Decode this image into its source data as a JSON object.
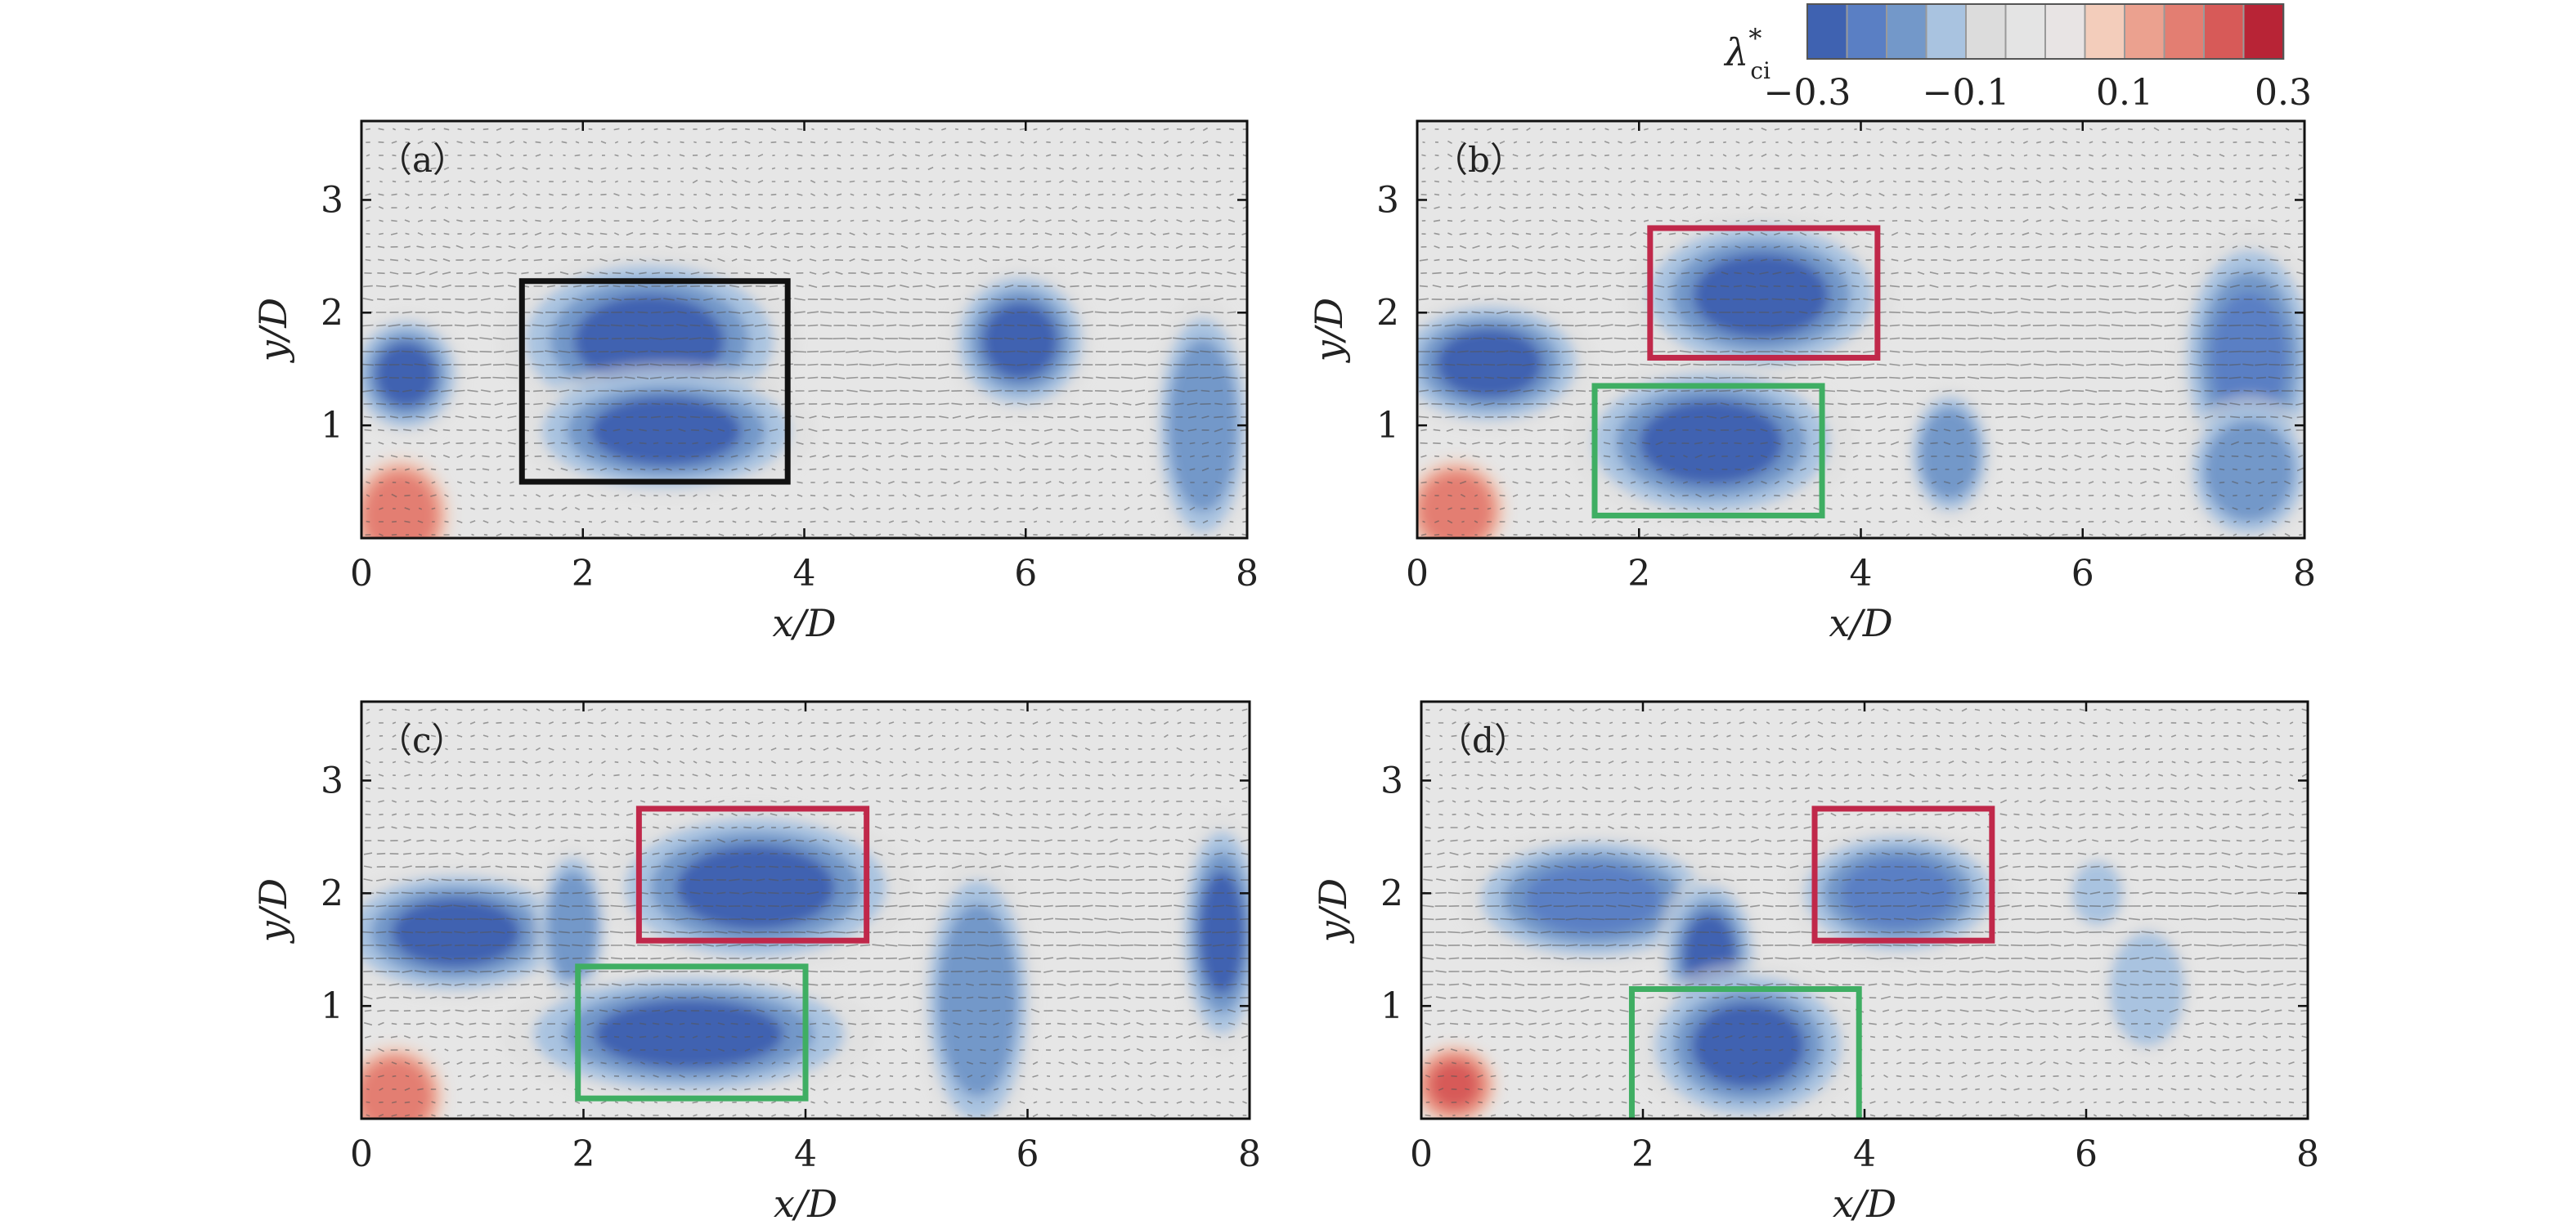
{
  "chart_data": [
    {
      "type": "heatmap",
      "panel_label": "（a）",
      "xlabel": "x/D",
      "ylabel": "y/D",
      "xlim": [
        0,
        8
      ],
      "ylim": [
        0,
        3.7
      ],
      "xticks": [
        "0",
        "2",
        "4",
        "6",
        "8"
      ],
      "yticks": [
        "1",
        "2",
        "3"
      ],
      "vortices": [
        {
          "x": 0.4,
          "y": 1.45,
          "rx": 0.4,
          "ry": 0.42,
          "value": -0.3
        },
        {
          "x": 2.6,
          "y": 1.75,
          "rx": 1.0,
          "ry": 0.6,
          "value": -0.3
        },
        {
          "x": 2.75,
          "y": 0.95,
          "rx": 1.0,
          "ry": 0.45,
          "value": -0.28
        },
        {
          "x": 5.95,
          "y": 1.75,
          "rx": 0.5,
          "ry": 0.5,
          "value": -0.25
        },
        {
          "x": 7.6,
          "y": 1.0,
          "rx": 0.35,
          "ry": 0.85,
          "value": -0.18
        },
        {
          "x": 0.35,
          "y": 0.2,
          "rx": 0.35,
          "ry": 0.4,
          "value": 0.2
        }
      ],
      "boxes": [
        {
          "color": "#111111",
          "x0": 1.45,
          "x1": 3.85,
          "y0": 0.5,
          "y1": 2.28
        }
      ]
    },
    {
      "type": "heatmap",
      "panel_label": "（b）",
      "xlabel": "x/D",
      "ylabel": "y/D",
      "xlim": [
        0,
        8
      ],
      "ylim": [
        0,
        3.7
      ],
      "xticks": [
        "0",
        "2",
        "4",
        "6",
        "8"
      ],
      "yticks": [
        "1",
        "2",
        "3"
      ],
      "vortices": [
        {
          "x": 3.1,
          "y": 2.15,
          "rx": 0.9,
          "ry": 0.55,
          "value": -0.28
        },
        {
          "x": 0.65,
          "y": 1.55,
          "rx": 0.7,
          "ry": 0.45,
          "value": -0.28
        },
        {
          "x": 2.65,
          "y": 0.85,
          "rx": 0.95,
          "ry": 0.55,
          "value": -0.28
        },
        {
          "x": 4.8,
          "y": 0.75,
          "rx": 0.3,
          "ry": 0.45,
          "value": -0.15
        },
        {
          "x": 7.5,
          "y": 1.6,
          "rx": 0.5,
          "ry": 0.85,
          "value": -0.22
        },
        {
          "x": 7.5,
          "y": 0.6,
          "rx": 0.45,
          "ry": 0.5,
          "value": -0.15
        },
        {
          "x": 0.35,
          "y": 0.25,
          "rx": 0.35,
          "ry": 0.35,
          "value": 0.2
        }
      ],
      "boxes": [
        {
          "color": "#c0284a",
          "x0": 2.1,
          "x1": 4.15,
          "y0": 1.6,
          "y1": 2.75
        },
        {
          "color": "#3fae63",
          "x0": 1.6,
          "x1": 3.65,
          "y0": 0.2,
          "y1": 1.35
        }
      ]
    },
    {
      "type": "heatmap",
      "panel_label": "（c）",
      "xlabel": "x/D",
      "ylabel": "y/D",
      "xlim": [
        0,
        8
      ],
      "ylim": [
        0,
        3.7
      ],
      "xticks": [
        "0",
        "2",
        "4",
        "6",
        "8"
      ],
      "yticks": [
        "1",
        "2",
        "3"
      ],
      "vortices": [
        {
          "x": 0.85,
          "y": 1.65,
          "rx": 0.85,
          "ry": 0.45,
          "value": -0.28
        },
        {
          "x": 1.9,
          "y": 1.7,
          "rx": 0.25,
          "ry": 0.55,
          "value": -0.15
        },
        {
          "x": 3.55,
          "y": 2.05,
          "rx": 1.05,
          "ry": 0.55,
          "value": -0.26
        },
        {
          "x": 2.95,
          "y": 0.75,
          "rx": 1.25,
          "ry": 0.45,
          "value": -0.28
        },
        {
          "x": 5.55,
          "y": 1.05,
          "rx": 0.4,
          "ry": 0.95,
          "value": -0.18
        },
        {
          "x": 7.75,
          "y": 1.65,
          "rx": 0.3,
          "ry": 0.8,
          "value": -0.25
        },
        {
          "x": 0.3,
          "y": 0.2,
          "rx": 0.35,
          "ry": 0.35,
          "value": 0.2
        }
      ],
      "boxes": [
        {
          "color": "#c0284a",
          "x0": 2.5,
          "x1": 4.55,
          "y0": 1.58,
          "y1": 2.75
        },
        {
          "color": "#3fae63",
          "x0": 1.95,
          "x1": 4.0,
          "y0": 0.18,
          "y1": 1.35
        }
      ]
    },
    {
      "type": "heatmap",
      "panel_label": "（d）",
      "xlabel": "x/D",
      "ylabel": "y/D",
      "xlim": [
        0,
        8
      ],
      "ylim": [
        0,
        3.7
      ],
      "xticks": [
        "0",
        "2",
        "4",
        "6",
        "8"
      ],
      "yticks": [
        "1",
        "2",
        "3"
      ],
      "vortices": [
        {
          "x": 1.55,
          "y": 1.95,
          "rx": 0.9,
          "ry": 0.45,
          "value": -0.2
        },
        {
          "x": 2.6,
          "y": 1.45,
          "rx": 0.35,
          "ry": 0.55,
          "value": -0.27
        },
        {
          "x": 2.95,
          "y": 0.65,
          "rx": 0.75,
          "ry": 0.55,
          "value": -0.28
        },
        {
          "x": 4.3,
          "y": 2.0,
          "rx": 0.75,
          "ry": 0.45,
          "value": -0.24
        },
        {
          "x": 6.1,
          "y": 2.0,
          "rx": 0.2,
          "ry": 0.25,
          "value": -0.12
        },
        {
          "x": 6.55,
          "y": 1.15,
          "rx": 0.3,
          "ry": 0.45,
          "value": -0.12
        },
        {
          "x": 0.3,
          "y": 0.3,
          "rx": 0.3,
          "ry": 0.28,
          "value": 0.25
        }
      ],
      "boxes": [
        {
          "color": "#c0284a",
          "x0": 3.55,
          "x1": 5.15,
          "y0": 1.58,
          "y1": 2.75
        },
        {
          "color": "#3fae63",
          "x0": 1.9,
          "x1": 3.95,
          "y0": -0.05,
          "y1": 1.15
        }
      ]
    }
  ],
  "colorbar": {
    "label": "λ",
    "label_sup": "*",
    "label_sub": "ci",
    "vmin": -0.3,
    "vmax": 0.3,
    "ticks": [
      "−0.3",
      "−0.1",
      "0.1",
      "0.3"
    ],
    "tick_values": [
      -0.3,
      -0.1,
      0.1,
      0.3
    ],
    "levels": [
      {
        "from": -0.3,
        "to": -0.25,
        "color": "#3f62b1"
      },
      {
        "from": -0.25,
        "to": -0.2,
        "color": "#5a7fc4"
      },
      {
        "from": -0.2,
        "to": -0.15,
        "color": "#7398c9"
      },
      {
        "from": -0.15,
        "to": -0.1,
        "color": "#a9c3e0"
      },
      {
        "from": -0.1,
        "to": -0.05,
        "color": "#dcdcdc"
      },
      {
        "from": -0.05,
        "to": 0.0,
        "color": "#e4e4e4"
      },
      {
        "from": 0.0,
        "to": 0.05,
        "color": "#e8e4e4"
      },
      {
        "from": 0.05,
        "to": 0.1,
        "color": "#f3cdbb"
      },
      {
        "from": 0.1,
        "to": 0.15,
        "color": "#eba18f"
      },
      {
        "from": 0.15,
        "to": 0.2,
        "color": "#e37e72"
      },
      {
        "from": 0.2,
        "to": 0.25,
        "color": "#d75a58"
      },
      {
        "from": 0.25,
        "to": 0.3,
        "color": "#b82436"
      }
    ]
  }
}
